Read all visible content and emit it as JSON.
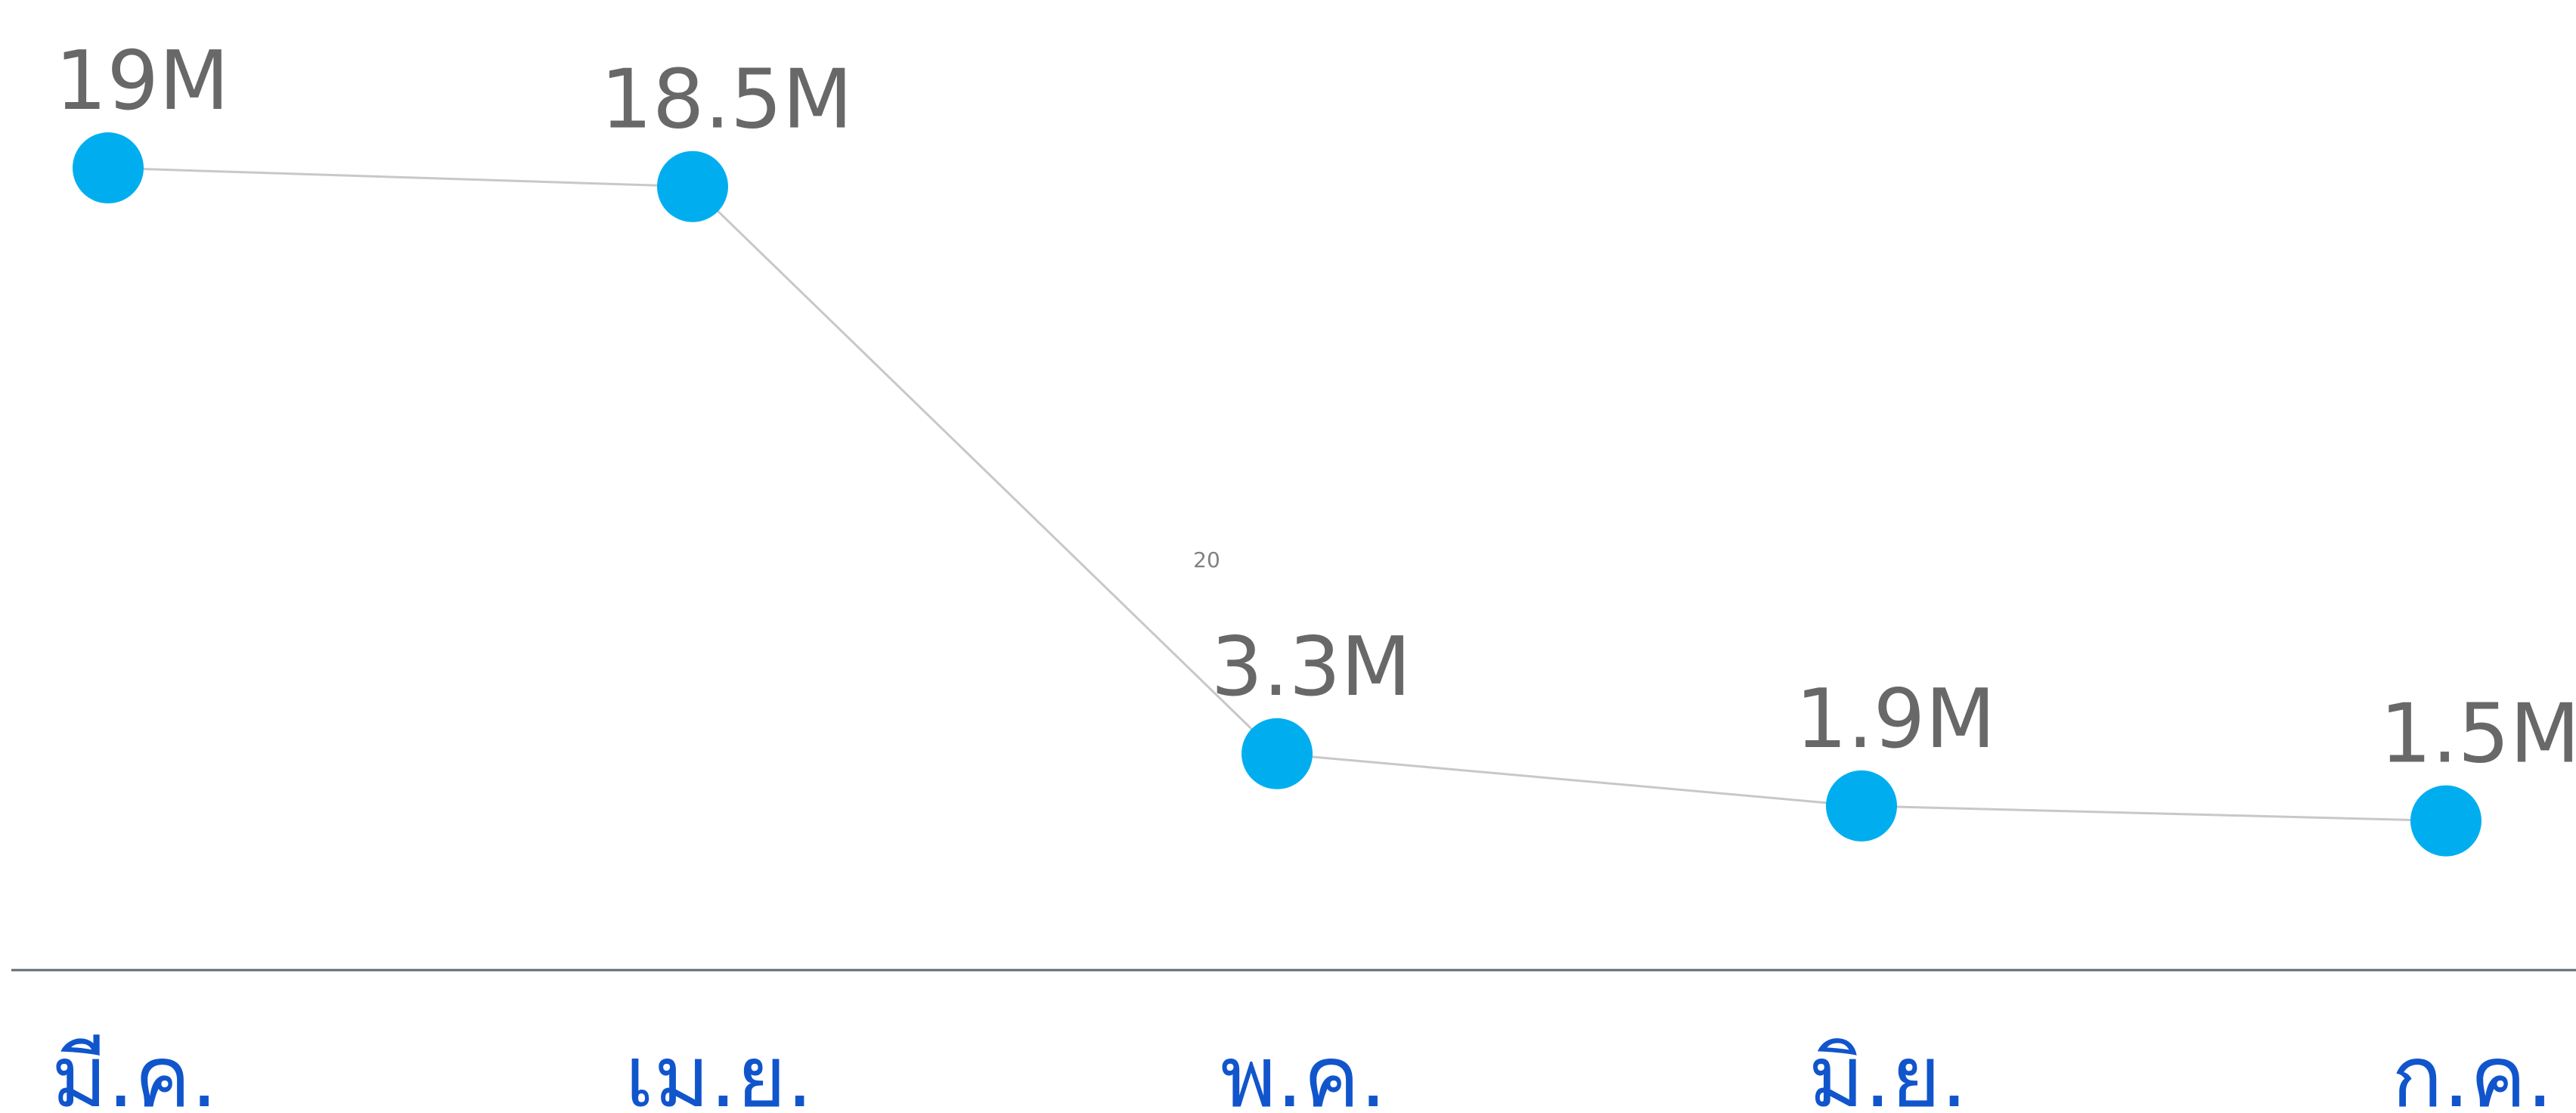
{
  "chart_data": {
    "type": "line",
    "categories": [
      "มี.ค.",
      "เม.ย.",
      "พ.ค.",
      "มิ.ย.",
      "ก.ค."
    ],
    "series": [
      {
        "values": [
          19000000,
          18500000,
          3300000,
          1900000,
          1500000
        ],
        "labels": [
          "19M",
          "18.5M",
          "3.3M",
          "1.9M",
          "1.5M"
        ]
      }
    ],
    "ylim": [
      -2500000,
      23500000
    ],
    "grid": false,
    "legend": "none",
    "annotations": [
      "20"
    ],
    "colors": {
      "point": "#00aeef",
      "line": "#c8c8c8",
      "data_label": "#686868",
      "tick_label": "#1155cc",
      "axis": "#5f6b76"
    }
  }
}
